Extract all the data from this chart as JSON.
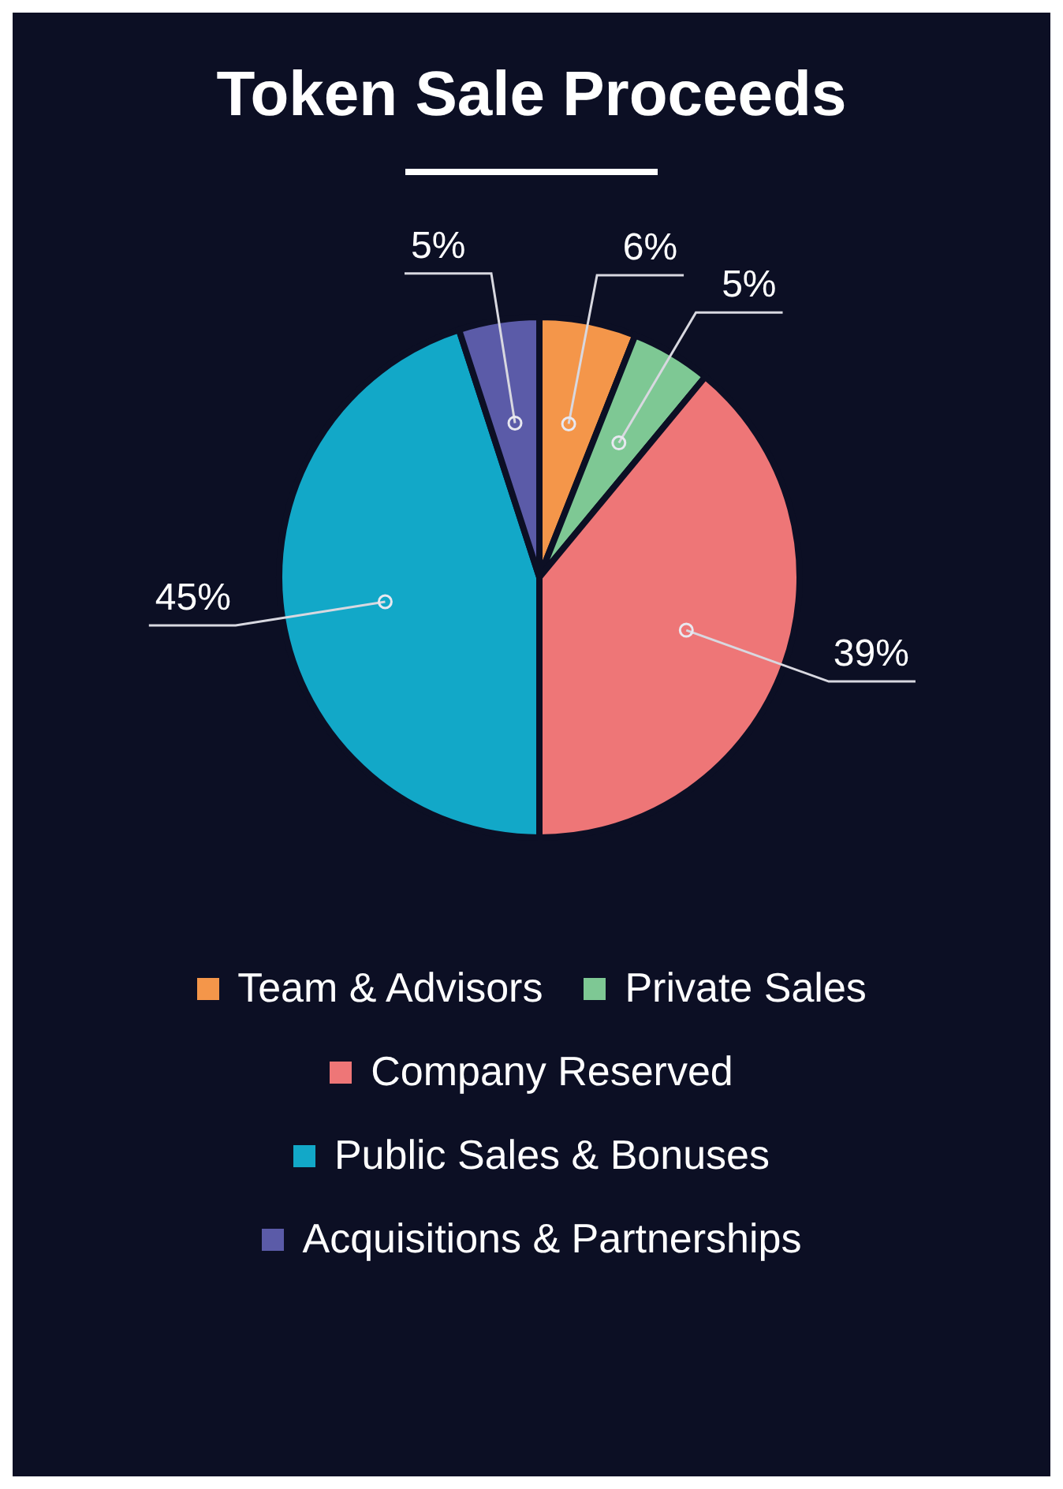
{
  "chart_data": {
    "type": "pie",
    "title": "Token Sale Proceeds",
    "categories": [
      "Team & Advisors",
      "Private Sales",
      "Company Reserved",
      "Public Sales & Bonuses",
      "Acquisitions & Partnerships"
    ],
    "values": [
      6,
      5,
      39,
      45,
      5
    ],
    "value_labels": [
      "6%",
      "5%",
      "39%",
      "45%",
      "5%"
    ],
    "colors": [
      "#f4964a",
      "#7ec894",
      "#ee7677",
      "#12a8c8",
      "#5b5ba8"
    ],
    "legend": "bottom"
  }
}
